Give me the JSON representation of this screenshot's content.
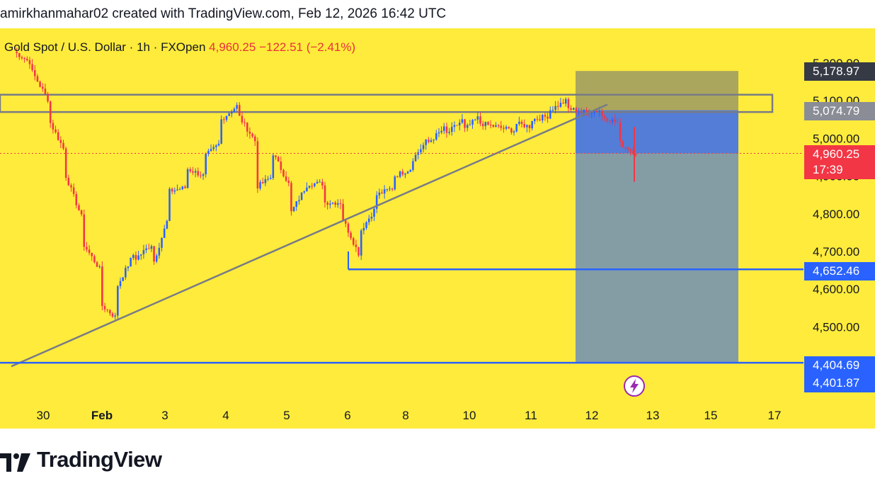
{
  "caption": "amirkhanmahar02 created with TradingView.com, Feb 12, 2026 16:42 UTC",
  "legend": {
    "symbol": "Gold Spot / U.S. Dollar · 1h · FXOpen",
    "price": "4,960.25",
    "change": "−122.51 (−2.41%)"
  },
  "tags": {
    "target_top": "5,178.97",
    "resistance": "5,074.79",
    "current_price": "4,960.25",
    "countdown": "17:39",
    "support": "4,652.46",
    "stop_a": "4,404.69",
    "stop_b": "4,401.87"
  },
  "logo": "TradingView",
  "colors": {
    "background": "#ffeb3b",
    "up": "#2962ff",
    "down": "#f23645",
    "trendline": "#787b86",
    "tag_dark": "#363a45",
    "tag_gray": "#787b86",
    "tag_blue": "#2962ff",
    "tag_red": "#f23645"
  },
  "chart_data": {
    "type": "candlestick",
    "symbol": "XAUUSD",
    "interval": "1h",
    "ylim": [
      4372,
      5264
    ],
    "ytick_values": [
      5200,
      5100,
      5000,
      4900,
      4800,
      4700,
      4600,
      4500
    ],
    "ytick_labels": [
      "5,200.00",
      "5,100.00",
      "5,000.00",
      "4,900.00",
      "4,800.00",
      "4,700.00",
      "4,600.00",
      "4,500.00"
    ],
    "xtick_labels": [
      "30",
      "Feb",
      "3",
      "4",
      "5",
      "6",
      "8",
      "10",
      "11",
      "12",
      "13",
      "15",
      "17"
    ],
    "price_path": [
      [
        5230,
        5200
      ],
      [
        5180,
        5100
      ],
      [
        5050,
        4960
      ],
      [
        4900,
        4780
      ],
      [
        4720,
        4650
      ],
      [
        4560,
        4520
      ],
      [
        4610,
        4700
      ],
      [
        4680,
        4720
      ],
      [
        4660,
        4800
      ],
      [
        4860,
        4870
      ],
      [
        4920,
        4900
      ],
      [
        4950,
        4990
      ],
      [
        5050,
        5090
      ],
      [
        5060,
        4990
      ],
      [
        4870,
        4900
      ],
      [
        4960,
        4870
      ],
      [
        4800,
        4880
      ],
      [
        4880,
        4880
      ],
      [
        4830,
        4830
      ],
      [
        4790,
        4690
      ],
      [
        4750,
        4820
      ],
      [
        4850,
        4870
      ],
      [
        4900,
        4920
      ],
      [
        4940,
        5000
      ],
      [
        4990,
        5030
      ],
      [
        5010,
        5050
      ],
      [
        5020,
        5060
      ],
      [
        5040,
        5030
      ],
      [
        5030,
        5020
      ],
      [
        5040,
        5030
      ],
      [
        5050,
        5060
      ],
      [
        5075,
        5100
      ],
      [
        5080,
        5070
      ],
      [
        5070,
        5075
      ],
      [
        5060,
        5040
      ],
      [
        4990,
        4960
      ]
    ],
    "levels": {
      "target_top": 5178.97,
      "resistance": 5074.79,
      "current": 4960.25,
      "support": 4652.46,
      "stop_a": 4404.69,
      "stop_b": 4401.87
    },
    "resistance_zone": [
      5070,
      5116
    ],
    "trendline": [
      [
        4395
      ],
      [
        5090
      ]
    ],
    "position": {
      "type": "short",
      "entry": 5074.79,
      "stop": 5178.97,
      "target": 4404.69
    }
  }
}
